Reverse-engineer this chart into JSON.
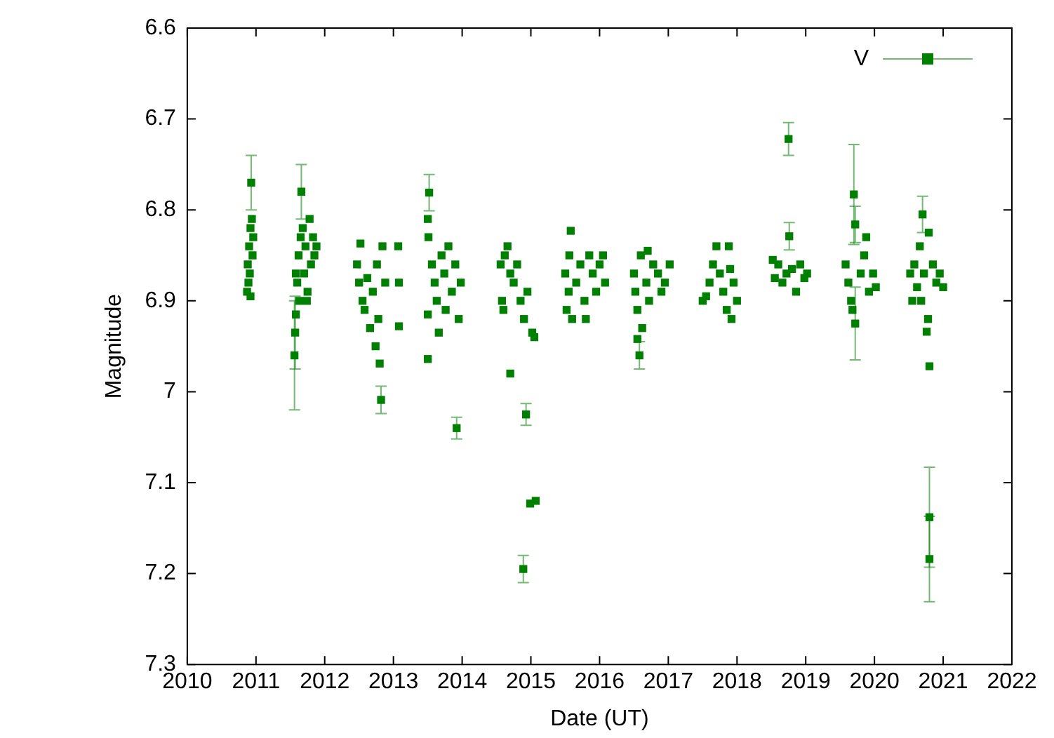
{
  "chart_data": {
    "type": "scatter",
    "xlabel": "Date (UT)",
    "ylabel": "Magnitude",
    "xlim": [
      2010,
      2022
    ],
    "xticks": [
      2010,
      2011,
      2012,
      2013,
      2014,
      2015,
      2016,
      2017,
      2018,
      2019,
      2020,
      2021,
      2022
    ],
    "ylim": [
      7.3,
      6.6
    ],
    "yticks": [
      6.6,
      6.7,
      6.8,
      6.9,
      7,
      7.1,
      7.2,
      7.3
    ],
    "grid": false,
    "legend": "top right",
    "marker": "square",
    "series": [
      {
        "name": "V",
        "color": "#008000",
        "x": [
          2010.88,
          2010.9,
          2010.92,
          2010.93,
          2010.91,
          2010.89,
          2010.95,
          2010.94,
          2010.87,
          2010.96,
          2010.92,
          2011.56,
          2011.57,
          2011.58,
          2011.58,
          2011.6,
          2011.62,
          2011.66,
          2011.65,
          2011.68,
          2011.7,
          2011.72,
          2011.75,
          2011.78,
          2011.8,
          2011.83,
          2011.85,
          2011.88,
          2011.74,
          2011.63,
          2012.47,
          2012.5,
          2012.52,
          2012.55,
          2012.58,
          2012.62,
          2012.66,
          2012.7,
          2012.74,
          2012.78,
          2012.8,
          2012.82,
          2012.88,
          2012.84,
          2013.07,
          2013.08,
          2013.08,
          2012.76,
          2013.52,
          2013.5,
          2013.51,
          2013.5,
          2013.5,
          2013.56,
          2013.6,
          2013.63,
          2013.66,
          2013.7,
          2013.74,
          2013.8,
          2013.85,
          2013.9,
          2013.95,
          2013.98,
          2013.92,
          2013.76,
          2014.56,
          2014.58,
          2014.6,
          2014.62,
          2014.66,
          2014.7,
          2014.75,
          2014.8,
          2014.85,
          2014.9,
          2014.95,
          2015.02,
          2015.05,
          2014.7,
          2014.93,
          2014.99,
          2015.07,
          2014.89,
          2015.58,
          2015.56,
          2015.5,
          2015.55,
          2015.52,
          2015.6,
          2015.66,
          2015.72,
          2015.78,
          2015.85,
          2015.9,
          2015.95,
          2016,
          2016.05,
          2016.08,
          2015.8,
          2016.5,
          2016.52,
          2016.55,
          2016.55,
          2016.58,
          2016.62,
          2016.6,
          2016.68,
          2016.72,
          2016.78,
          2016.85,
          2016.9,
          2016.95,
          2017.02,
          2016.7,
          2017.5,
          2017.55,
          2017.6,
          2017.65,
          2017.7,
          2017.75,
          2017.8,
          2017.85,
          2017.9,
          2017.95,
          2018,
          2017.88,
          2017.92,
          2018.52,
          2018.55,
          2018.6,
          2018.66,
          2018.72,
          2018.75,
          2018.76,
          2018.8,
          2018.86,
          2018.92,
          2018.98,
          2019.02,
          2019.58,
          2019.62,
          2019.66,
          2019.68,
          2019.72,
          2019.7,
          2019.72,
          2019.8,
          2019.85,
          2019.88,
          2019.92,
          2019.98,
          2020.02,
          2020.52,
          2020.55,
          2020.58,
          2020.62,
          2020.66,
          2020.7,
          2020.72,
          2020.76,
          2020.78,
          2020.8,
          2020.8,
          2020.8,
          2020.79,
          2020.85,
          2020.9,
          2020.95,
          2021,
          2020.68
        ],
        "values": [
          6.86,
          6.84,
          6.82,
          6.77,
          6.87,
          6.88,
          6.85,
          6.81,
          6.89,
          6.83,
          6.895,
          6.96,
          6.935,
          6.915,
          6.87,
          6.88,
          6.85,
          6.78,
          6.83,
          6.82,
          6.87,
          6.84,
          6.89,
          6.81,
          6.86,
          6.83,
          6.85,
          6.84,
          6.9,
          6.9,
          6.86,
          6.88,
          6.837,
          6.9,
          6.91,
          6.875,
          6.93,
          6.89,
          6.95,
          6.92,
          6.969,
          7.009,
          6.88,
          6.84,
          6.84,
          6.88,
          6.928,
          6.86,
          6.781,
          6.81,
          6.83,
          6.915,
          6.964,
          6.86,
          6.88,
          6.9,
          6.935,
          6.85,
          6.87,
          6.84,
          6.89,
          6.86,
          6.92,
          6.88,
          7.04,
          6.91,
          6.86,
          6.9,
          6.91,
          6.85,
          6.84,
          6.87,
          6.88,
          6.86,
          6.9,
          6.92,
          6.89,
          6.935,
          6.94,
          6.98,
          7.025,
          7.123,
          7.12,
          7.195,
          6.823,
          6.85,
          6.87,
          6.89,
          6.91,
          6.92,
          6.88,
          6.86,
          6.9,
          6.85,
          6.87,
          6.89,
          6.86,
          6.85,
          6.88,
          6.92,
          6.87,
          6.89,
          6.91,
          6.942,
          6.96,
          6.93,
          6.85,
          6.88,
          6.9,
          6.86,
          6.87,
          6.89,
          6.88,
          6.86,
          6.845,
          6.9,
          6.895,
          6.88,
          6.86,
          6.84,
          6.87,
          6.89,
          6.91,
          6.865,
          6.88,
          6.9,
          6.84,
          6.92,
          6.855,
          6.875,
          6.86,
          6.88,
          6.87,
          6.722,
          6.829,
          6.865,
          6.89,
          6.86,
          6.875,
          6.87,
          6.86,
          6.88,
          6.9,
          6.91,
          6.925,
          6.783,
          6.816,
          6.87,
          6.85,
          6.83,
          6.89,
          6.87,
          6.885,
          6.87,
          6.9,
          6.86,
          6.885,
          6.84,
          6.805,
          6.87,
          6.934,
          6.92,
          6.972,
          7.138,
          7.184,
          6.825,
          6.86,
          6.88,
          6.87,
          6.885,
          6.9
        ],
        "errors": [
          null,
          null,
          null,
          0.03,
          null,
          null,
          null,
          null,
          null,
          null,
          null,
          0.06,
          0.04,
          null,
          null,
          null,
          null,
          0.03,
          null,
          null,
          null,
          null,
          null,
          null,
          null,
          null,
          null,
          null,
          null,
          null,
          null,
          null,
          null,
          null,
          null,
          null,
          null,
          null,
          null,
          null,
          null,
          0.015,
          null,
          null,
          null,
          null,
          null,
          null,
          0.02,
          null,
          null,
          null,
          null,
          null,
          null,
          null,
          null,
          null,
          null,
          null,
          null,
          null,
          null,
          null,
          0.012,
          null,
          null,
          null,
          null,
          null,
          null,
          null,
          null,
          null,
          null,
          null,
          null,
          null,
          null,
          null,
          0.012,
          null,
          null,
          0.015,
          null,
          null,
          null,
          null,
          null,
          null,
          null,
          null,
          null,
          null,
          null,
          null,
          null,
          null,
          null,
          null,
          null,
          null,
          null,
          null,
          0.015,
          null,
          null,
          null,
          null,
          null,
          null,
          null,
          null,
          null,
          null,
          null,
          null,
          null,
          null,
          null,
          null,
          null,
          null,
          null,
          null,
          null,
          null,
          null,
          null,
          null,
          null,
          null,
          null,
          0.018,
          0.015,
          null,
          null,
          null,
          null,
          null,
          null,
          null,
          null,
          null,
          0.04,
          0.055,
          0.02,
          null,
          null,
          null,
          null,
          null,
          null,
          null,
          null,
          null,
          null,
          null,
          0.02,
          null,
          null,
          null,
          null,
          0.055,
          0.047,
          null,
          null,
          null,
          null,
          null,
          null
        ]
      }
    ]
  }
}
